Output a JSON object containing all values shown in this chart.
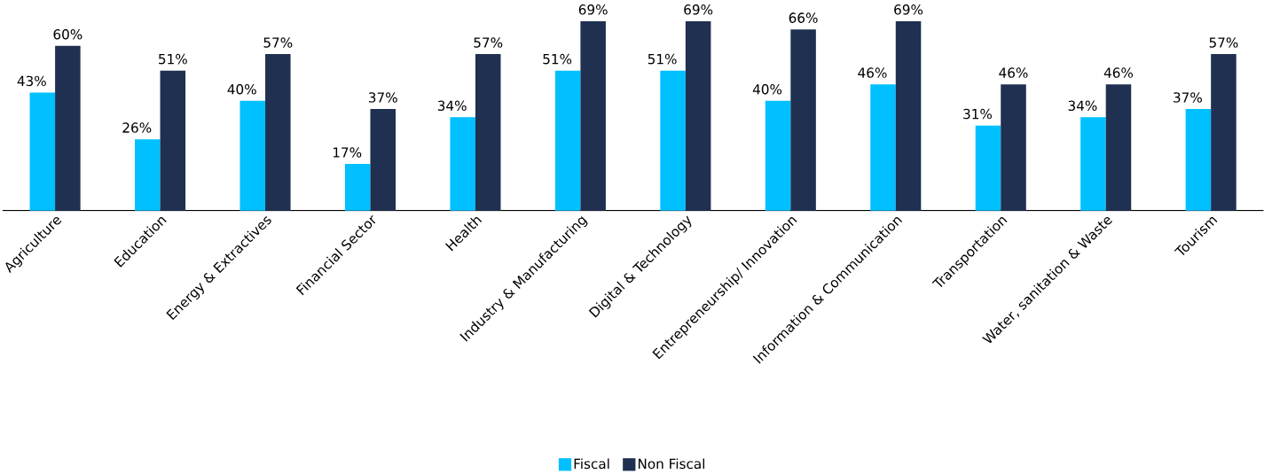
{
  "chart_data": {
    "type": "bar",
    "categories": [
      "Agriculture",
      "Education",
      "Energy & Extractives",
      "Financial Sector",
      "Health",
      "Industry & Manufacturing",
      "Digital & Technology",
      "Entrepreneurship/ Innovation",
      "Information & Communication",
      "Transportation",
      "Water, sanitation & Waste",
      "Tourism"
    ],
    "series": [
      {
        "name": "Fiscal",
        "color": "#00c0ff",
        "values": [
          43,
          26,
          40,
          17,
          34,
          51,
          51,
          40,
          46,
          31,
          34,
          37
        ],
        "value_labels": [
          "43%",
          "26%",
          "40%",
          "17%",
          "34%",
          "51%",
          "51%",
          "40%",
          "46%",
          "31%",
          "34%",
          "37%"
        ]
      },
      {
        "name": "Non Fiscal",
        "color": "#1f3050",
        "values": [
          60,
          51,
          57,
          37,
          57,
          69,
          69,
          66,
          69,
          46,
          46,
          57
        ],
        "value_labels": [
          "60%",
          "51%",
          "57%",
          "37%",
          "57%",
          "69%",
          "69%",
          "66%",
          "69%",
          "46%",
          "46%",
          "57%"
        ]
      }
    ],
    "legend": "bottom",
    "grid": false
  }
}
